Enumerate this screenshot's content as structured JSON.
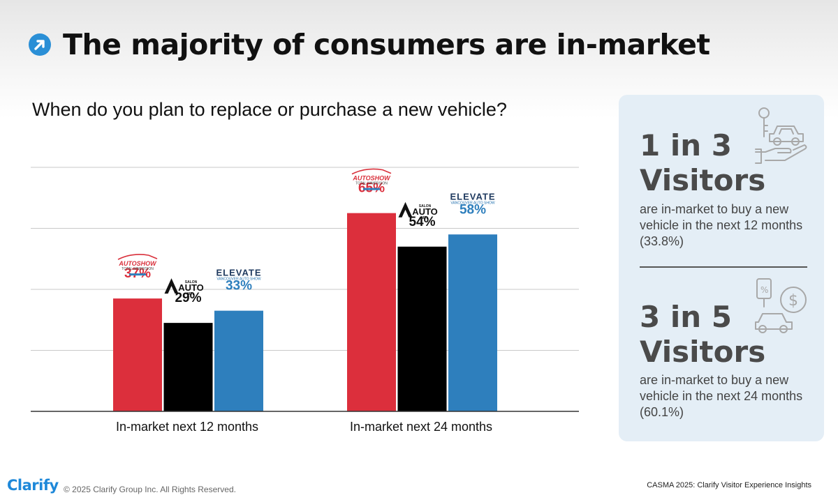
{
  "header": {
    "title": "The majority of consumers are in-market",
    "icon": "arrow-up-right-circle-icon"
  },
  "question": "When do you plan to replace or purchase a new vehicle?",
  "chart_data": {
    "type": "bar",
    "title": "When do you plan to replace or purchase a new vehicle?",
    "categories": [
      "In-market next 12 months",
      "In-market next 24 months"
    ],
    "series": [
      {
        "name": "AutoShow Total Immersion",
        "color": "#dc2f3c",
        "values": [
          37,
          65
        ],
        "labels": [
          "37%",
          "65%"
        ]
      },
      {
        "name": "Salon Auto MTL",
        "color": "#000000",
        "values": [
          29,
          54
        ],
        "labels": [
          "29%",
          "54%"
        ]
      },
      {
        "name": "Elevate Vancouver Auto Show",
        "color": "#2e7fbd",
        "values": [
          33,
          58
        ],
        "labels": [
          "33%",
          "58%"
        ]
      }
    ],
    "ylim": [
      0,
      80
    ],
    "gridlines": [
      20,
      40,
      60,
      80
    ],
    "grid": true,
    "xlabel": "",
    "ylabel": ""
  },
  "logos": {
    "autoshow": {
      "name": "AUTOSHOW",
      "sub": "TOTAL IMMERSION"
    },
    "salon": {
      "top": "SALON",
      "mid": "AUTO",
      "bot": "MTL"
    },
    "elevate": {
      "name": "ELEVATE",
      "sub": "VANCOUVER AUTO SHOW"
    }
  },
  "panel": {
    "stats": [
      {
        "big_line1": "1 in 3",
        "big_line2": "Visitors",
        "desc": "are in-market to buy a new vehicle in the next 12 months (33.8%)",
        "icon": "car-key-hand-icon"
      },
      {
        "big_line1": "3 in 5",
        "big_line2": "Visitors",
        "desc": "are in-market to buy a new vehicle in the next 24 months (60.1%)",
        "icon": "car-price-tag-dollar-icon"
      }
    ]
  },
  "footer": {
    "brand": "Clarify",
    "copyright": "© 2025 Clarify Group Inc. All Rights Reserved.",
    "note": "CASMA 2025: Clarify Visitor Experience Insights"
  }
}
